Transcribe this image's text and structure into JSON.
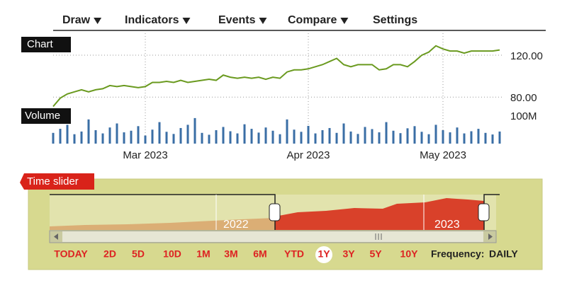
{
  "menu": [
    {
      "label": "Draw",
      "dropdown": true
    },
    {
      "label": "Indicators",
      "dropdown": true
    },
    {
      "label": "Events",
      "dropdown": true
    },
    {
      "label": "Compare",
      "dropdown": true
    },
    {
      "label": "Settings",
      "dropdown": false
    }
  ],
  "chart_data": {
    "type": "line",
    "label": "Chart",
    "color": "#6a9a1f",
    "grid": true,
    "values": [
      71,
      79,
      83,
      85,
      87,
      85,
      87,
      88,
      91,
      90,
      91,
      90,
      89,
      90,
      94,
      94,
      95,
      94,
      96,
      94,
      95,
      96,
      97,
      96,
      101,
      99,
      98,
      99,
      98,
      99,
      97,
      99,
      98,
      104,
      106,
      106,
      107,
      109,
      111,
      114,
      117,
      111,
      109,
      111,
      111,
      111,
      106,
      107,
      111,
      111,
      109,
      114,
      120,
      123,
      129,
      126,
      124,
      124,
      122,
      124,
      124,
      124,
      124,
      125
    ],
    "xlim": [
      0,
      63
    ],
    "xticks": [
      {
        "value": 13,
        "label": "Mar 2023"
      },
      {
        "value": 36,
        "label": "Apr 2023"
      },
      {
        "value": 55,
        "label": "May 2023"
      }
    ],
    "ylim": [
      70,
      141
    ],
    "yticks": [
      {
        "value": 80,
        "label": "80.00"
      },
      {
        "value": 120,
        "label": "120.00"
      }
    ],
    "volume": {
      "type": "bar",
      "label": "Volume",
      "color": "#3a6ea5",
      "values": [
        40,
        55,
        70,
        35,
        45,
        90,
        50,
        38,
        60,
        75,
        42,
        48,
        65,
        30,
        52,
        80,
        44,
        36,
        58,
        70,
        95,
        40,
        33,
        50,
        62,
        46,
        38,
        72,
        55,
        41,
        60,
        48,
        35,
        90,
        52,
        44,
        66,
        38,
        50,
        58,
        40,
        75,
        45,
        36,
        62,
        54,
        42,
        80,
        48,
        39,
        57,
        65,
        44,
        35,
        70,
        50,
        42,
        60,
        38,
        46,
        55,
        40,
        34,
        45
      ],
      "ylim": [
        0,
        200
      ],
      "yticks": [
        {
          "value": 100,
          "label": "100M"
        }
      ]
    }
  },
  "slider": {
    "label": "Time slider",
    "years": [
      "2022",
      "2023"
    ],
    "ranges": [
      "TODAY",
      "2D",
      "5D",
      "10D",
      "1M",
      "3M",
      "6M",
      "YTD",
      "1Y",
      "3Y",
      "5Y",
      "10Y"
    ],
    "selected": 8,
    "frequency_label": "Frequency:",
    "frequency": "DAILY"
  }
}
